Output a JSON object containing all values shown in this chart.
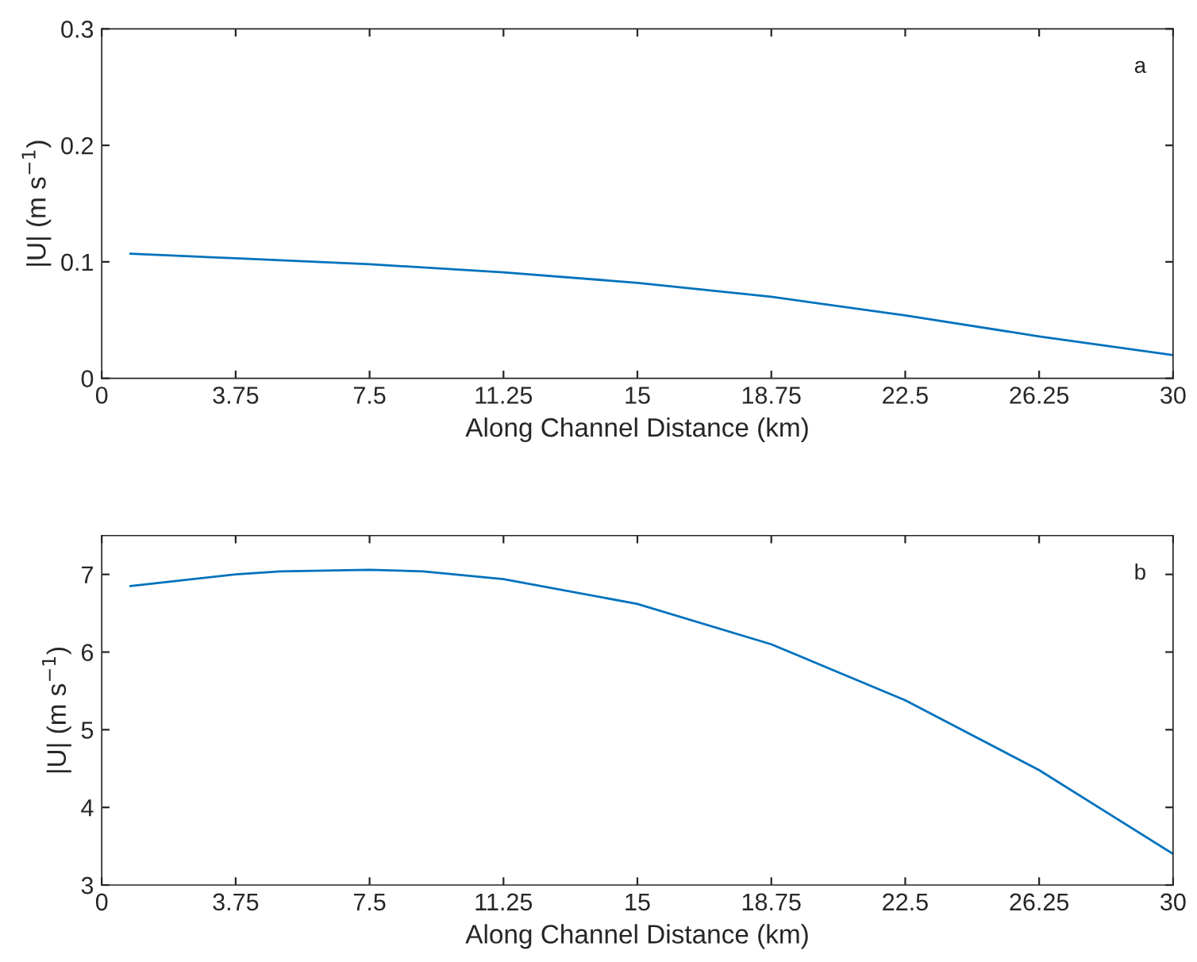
{
  "chart_data": [
    {
      "type": "line",
      "xlabel": "Along Channel Distance (km)",
      "ylabel": "|U| (m s$^{−1}$)",
      "annotations": [
        "a"
      ],
      "series": [
        {
          "color": "#0072bd",
          "x": [
            0.8,
            3.75,
            7.5,
            11.25,
            15,
            18.75,
            22.5,
            26.25,
            30
          ],
          "values": [
            0.107,
            0.103,
            0.098,
            0.091,
            0.082,
            0.07,
            0.054,
            0.036,
            0.02
          ]
        }
      ],
      "xlim": [
        0,
        30
      ],
      "xticks": [
        0,
        3.75,
        7.5,
        11.25,
        15,
        18.75,
        22.5,
        26.25,
        30
      ],
      "ylim": [
        0,
        0.3
      ],
      "yticks": [
        0,
        0.1,
        0.2,
        0.3
      ],
      "grid": false,
      "legend": false
    },
    {
      "type": "line",
      "xlabel": "Along Channel Distance (km)",
      "ylabel": "|U| (m s$^{−1}$)",
      "annotations": [
        "b"
      ],
      "series": [
        {
          "color": "#0072bd",
          "x": [
            0.8,
            3.75,
            5,
            7.5,
            9,
            11.25,
            15,
            18.75,
            22.5,
            26.25,
            30
          ],
          "values": [
            6.85,
            7.0,
            7.04,
            7.06,
            7.04,
            6.94,
            6.62,
            6.1,
            5.38,
            4.48,
            3.4
          ]
        }
      ],
      "xlim": [
        0,
        30
      ],
      "xticks": [
        0,
        3.75,
        7.5,
        11.25,
        15,
        18.75,
        22.5,
        26.25,
        30
      ],
      "ylim": [
        3,
        7.5
      ],
      "yticks": [
        3,
        4,
        5,
        6,
        7
      ],
      "grid": false,
      "legend": false
    }
  ]
}
